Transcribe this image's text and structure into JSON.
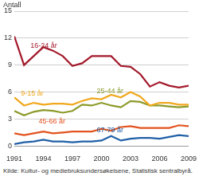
{
  "chart_data": {
    "type": "line",
    "y_label": "Antall",
    "source": "Kilde: Kultur- og mediebruksundersøkelsene, Statistisk sentralbyrå.",
    "x": [
      1991,
      1992,
      1993,
      1994,
      1995,
      1996,
      1997,
      1998,
      1999,
      2000,
      2001,
      2002,
      2003,
      2004,
      2005,
      2006,
      2007,
      2008,
      2009
    ],
    "series": [
      {
        "name": "16-24 år",
        "color": "#a3192b",
        "values": [
          12.2,
          9.0,
          10.0,
          11.0,
          10.6,
          10.0,
          8.9,
          9.2,
          10.0,
          10.0,
          10.0,
          8.9,
          8.8,
          8.0,
          6.6,
          7.1,
          6.7,
          6.5,
          6.7
        ]
      },
      {
        "name": "9-15 år",
        "color": "#f0a81e",
        "values": [
          5.4,
          4.5,
          4.8,
          4.6,
          4.7,
          4.7,
          4.6,
          5.0,
          5.3,
          5.2,
          5.7,
          5.4,
          6.0,
          5.5,
          4.5,
          4.8,
          4.8,
          4.6,
          4.6
        ]
      },
      {
        "name": "25-44 år",
        "color": "#8c9a2a",
        "values": [
          3.9,
          3.4,
          3.8,
          4.0,
          3.9,
          3.7,
          3.9,
          4.6,
          4.5,
          4.8,
          4.5,
          4.3,
          5.0,
          4.9,
          4.5,
          4.5,
          4.4,
          4.3,
          4.4
        ]
      },
      {
        "name": "45-66 år",
        "color": "#e2531f",
        "values": [
          1.4,
          1.2,
          1.4,
          1.6,
          1.4,
          1.5,
          1.6,
          1.6,
          1.6,
          1.9,
          1.7,
          2.1,
          2.2,
          2.0,
          2.0,
          2.0,
          2.0,
          2.3,
          2.2
        ]
      },
      {
        "name": "67-79 år",
        "color": "#1f5fa6",
        "values": [
          0.2,
          0.4,
          0.5,
          0.7,
          0.5,
          0.5,
          0.4,
          0.5,
          0.5,
          0.6,
          1.1,
          0.6,
          0.8,
          0.9,
          0.9,
          0.8,
          1.0,
          1.2,
          1.1
        ]
      }
    ],
    "xlim": [
      1991,
      2009
    ],
    "xticks": [
      1991,
      1994,
      1997,
      2000,
      2003,
      2006,
      2009
    ],
    "ylim": [
      0,
      15
    ],
    "yticks": [
      0,
      3,
      6,
      9,
      12,
      15
    ],
    "grid": true
  }
}
